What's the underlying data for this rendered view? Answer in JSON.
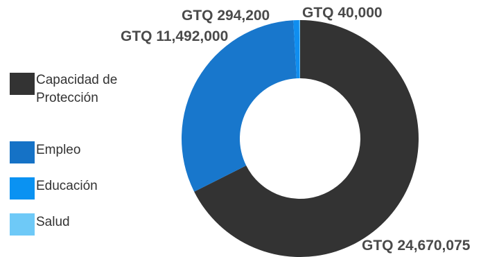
{
  "chart_data": {
    "type": "pie",
    "donut": true,
    "title": "",
    "categories": [
      "Capacidad de Protección",
      "Empleo",
      "Educación",
      "Salud"
    ],
    "values": [
      24670075,
      11492000,
      294200,
      40000
    ],
    "value_labels": [
      "GTQ 24,670,075",
      "GTQ 11,492,000",
      "GTQ 294,200",
      "GTQ 40,000"
    ],
    "colors": [
      "#333333",
      "#1877cc",
      "#0f8ef0",
      "#6ec4f5"
    ],
    "legend_position": "left",
    "start_angle": "12 o'clock",
    "direction": "clockwise"
  },
  "legend": {
    "items": [
      {
        "label": "Capacidad de Protección",
        "color": "#333333"
      },
      {
        "label": "Empleo",
        "color": "#1572c6"
      },
      {
        "label": "Educación",
        "color": "#0a92f2"
      },
      {
        "label": "Salud",
        "color": "#6ec9f7"
      }
    ]
  }
}
